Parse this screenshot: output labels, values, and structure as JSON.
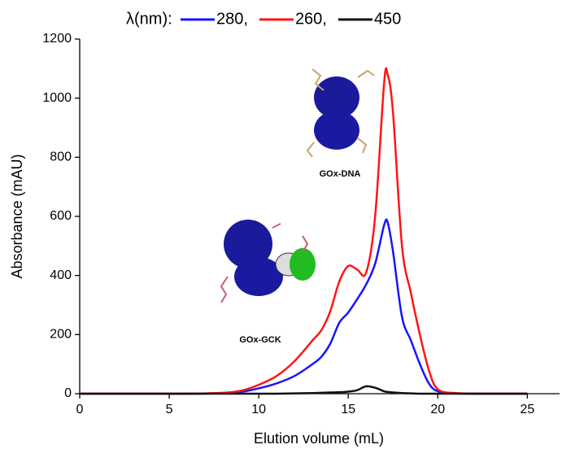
{
  "chart_data": {
    "type": "line",
    "legend_title": "λ(nm):",
    "x_label": "Elution volume (mL)",
    "y_label": "Absorbance (mAU)",
    "annotations": [
      "GOx-DNA",
      "GOx-GCK"
    ],
    "x": [
      0,
      2,
      4,
      6,
      8,
      9,
      10,
      11,
      12,
      13,
      13.5,
      14,
      14.5,
      15,
      15.5,
      16,
      16.5,
      17,
      17.2,
      17.5,
      18,
      18.5,
      19,
      19.5,
      20,
      21,
      23,
      25
    ],
    "series": [
      {
        "name": "280,",
        "color": "#1515ff",
        "values": [
          0,
          0,
          0,
          0,
          2,
          6,
          18,
          35,
          60,
          100,
          125,
          170,
          240,
          275,
          320,
          370,
          440,
          570,
          580,
          480,
          260,
          180,
          100,
          35,
          8,
          1,
          0,
          0
        ]
      },
      {
        "name": "260,",
        "color": "#ff1515",
        "values": [
          0,
          0,
          0,
          0,
          3,
          10,
          30,
          60,
          110,
          180,
          215,
          280,
          380,
          432,
          420,
          410,
          600,
          1050,
          1080,
          950,
          500,
          340,
          200,
          80,
          15,
          2,
          0,
          0
        ]
      },
      {
        "name": "450",
        "color": "#111111",
        "values": [
          0,
          0,
          0,
          0,
          0,
          0,
          0,
          0,
          1,
          2,
          3,
          4,
          5,
          7,
          12,
          25,
          20,
          8,
          6,
          4,
          2,
          1,
          0,
          0,
          0,
          0,
          0,
          0
        ]
      }
    ],
    "xlim": [
      0,
      26.8
    ],
    "xticks": [
      0,
      5,
      10,
      15,
      20,
      25
    ],
    "ylim": [
      0,
      1200
    ],
    "yticks": [
      0,
      200,
      400,
      600,
      800,
      1000,
      1200
    ]
  }
}
